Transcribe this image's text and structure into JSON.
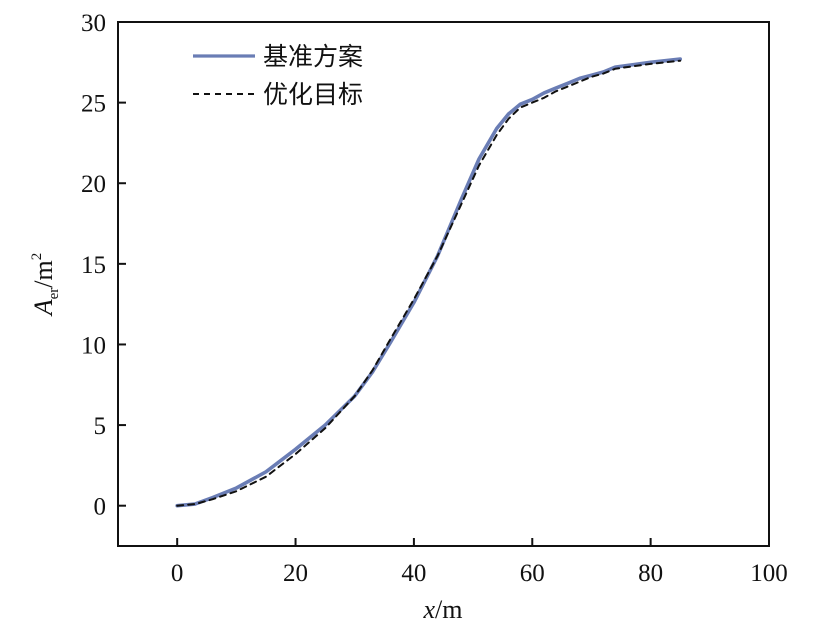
{
  "chart_data": {
    "type": "line",
    "title": "",
    "xlabel": {
      "italic": "x",
      "rest": "/m"
    },
    "ylabel": {
      "italic": "A",
      "sub": "er",
      "rest": "/m",
      "sup": "2"
    },
    "xlim": [
      -10,
      100
    ],
    "ylim": [
      -2.5,
      30
    ],
    "xticks": [
      0,
      20,
      40,
      60,
      80,
      100
    ],
    "yticks": [
      0,
      5,
      10,
      15,
      20,
      25,
      30
    ],
    "xtick_labels": [
      "0",
      "20",
      "40",
      "60",
      "80",
      "100"
    ],
    "ytick_labels": [
      "0",
      "5",
      "10",
      "15",
      "20",
      "25",
      "30"
    ],
    "grid": false,
    "legend_position": "top-left",
    "series": [
      {
        "name": "基准方案",
        "color": "#6a7db5",
        "style": "solid",
        "x": [
          0,
          3,
          6,
          10,
          15,
          20,
          25,
          30,
          33,
          36,
          40,
          44,
          48,
          51,
          54,
          56,
          58,
          60,
          62,
          64,
          66,
          68,
          70,
          72,
          74,
          76,
          80,
          85
        ],
        "y": [
          0,
          0.1,
          0.5,
          1.1,
          2.1,
          3.5,
          5.0,
          6.8,
          8.3,
          10.1,
          12.6,
          15.5,
          19.0,
          21.5,
          23.4,
          24.3,
          24.9,
          25.2,
          25.6,
          25.9,
          26.2,
          26.5,
          26.7,
          26.9,
          27.2,
          27.3,
          27.5,
          27.7
        ]
      },
      {
        "name": "优化目标",
        "color": "#111111",
        "style": "dashed",
        "x": [
          0,
          3,
          6,
          10,
          15,
          20,
          25,
          30,
          33,
          36,
          40,
          44,
          48,
          51,
          54,
          56,
          58,
          60,
          62,
          64,
          66,
          68,
          70,
          72,
          74,
          76,
          80,
          85
        ],
        "y": [
          0,
          0.1,
          0.4,
          0.9,
          1.8,
          3.2,
          4.8,
          6.8,
          8.4,
          10.3,
          12.8,
          15.5,
          18.7,
          21.1,
          23.0,
          24.0,
          24.7,
          25.0,
          25.3,
          25.7,
          26.0,
          26.3,
          26.6,
          26.8,
          27.1,
          27.2,
          27.4,
          27.6
        ]
      }
    ]
  }
}
